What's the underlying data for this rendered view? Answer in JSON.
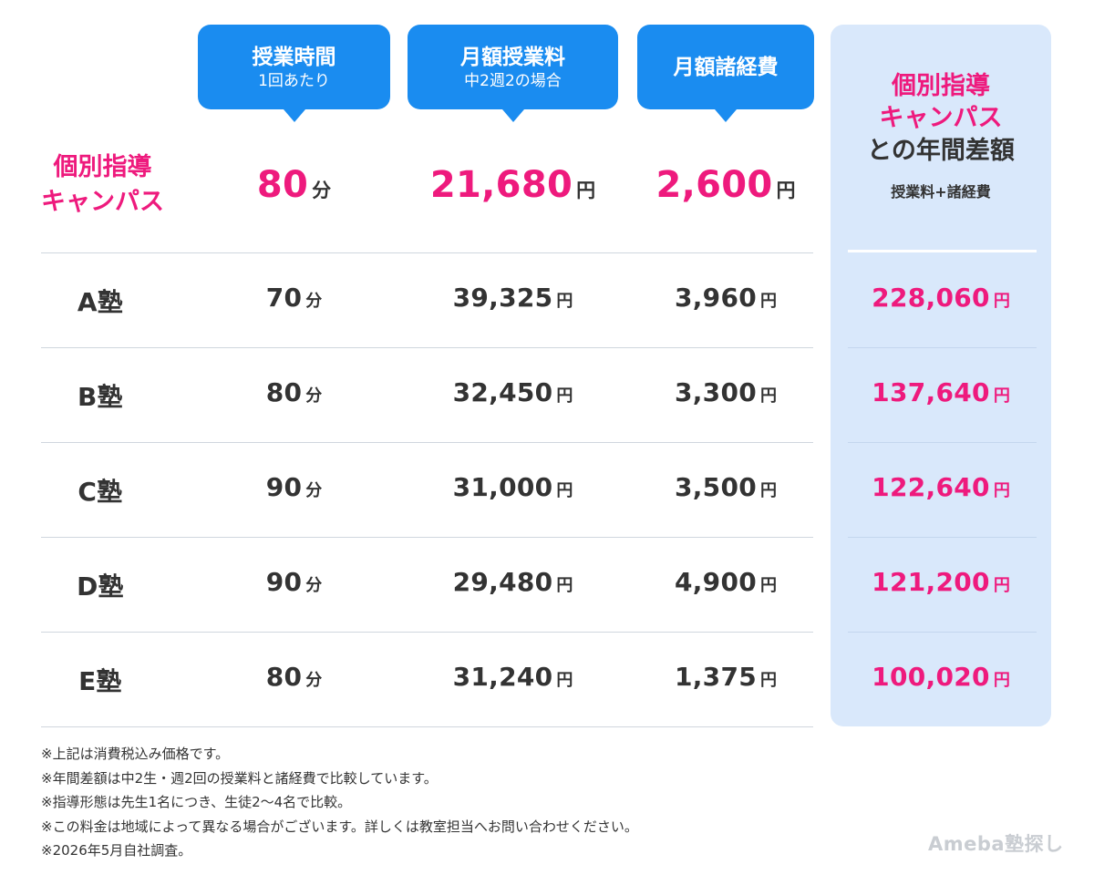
{
  "headers": {
    "time": {
      "main": "授業時間",
      "sub": "1回あたり"
    },
    "fee": {
      "main": "月額授業料",
      "sub": "中2週2の場合"
    },
    "expense": {
      "main": "月額諸経費"
    }
  },
  "highlight_header": {
    "line1": "個別指導",
    "line2": "キャンパス",
    "line3": "との年間差額",
    "sub": "授業料+諸経費"
  },
  "campus": {
    "label_line1": "個別指導",
    "label_line2": "キャンパス",
    "time": "80",
    "time_unit": "分",
    "fee": "21,680",
    "fee_unit": "円",
    "expense": "2,600",
    "expense_unit": "円"
  },
  "rows": [
    {
      "name": "A塾",
      "time": "70",
      "time_unit": "分",
      "fee": "39,325",
      "fee_unit": "円",
      "expense": "3,960",
      "expense_unit": "円",
      "diff": "228,060",
      "diff_unit": "円"
    },
    {
      "name": "B塾",
      "time": "80",
      "time_unit": "分",
      "fee": "32,450",
      "fee_unit": "円",
      "expense": "3,300",
      "expense_unit": "円",
      "diff": "137,640",
      "diff_unit": "円"
    },
    {
      "name": "C塾",
      "time": "90",
      "time_unit": "分",
      "fee": "31,000",
      "fee_unit": "円",
      "expense": "3,500",
      "expense_unit": "円",
      "diff": "122,640",
      "diff_unit": "円"
    },
    {
      "name": "D塾",
      "time": "90",
      "time_unit": "分",
      "fee": "29,480",
      "fee_unit": "円",
      "expense": "4,900",
      "expense_unit": "円",
      "diff": "121,200",
      "diff_unit": "円"
    },
    {
      "name": "E塾",
      "time": "80",
      "time_unit": "分",
      "fee": "31,240",
      "fee_unit": "円",
      "expense": "1,375",
      "expense_unit": "円",
      "diff": "100,020",
      "diff_unit": "円"
    }
  ],
  "notes": [
    "※上記は消費税込み価格です。",
    "※年間差額は中2生・週2回の授業料と諸経費で比較しています。",
    "※指導形態は先生1名につき、生徒2〜4名で比較。",
    "※この料金は地域によって異なる場合がございます。詳しくは教室担当へお問い合わせください。",
    "※2026年5月自社調査。"
  ],
  "logo": "Ameba塾探し",
  "colors": {
    "pink": "#ee1a7d",
    "blue": "#1a8cf0",
    "highlight_bg": "#d9e8fb",
    "text": "#333333"
  }
}
